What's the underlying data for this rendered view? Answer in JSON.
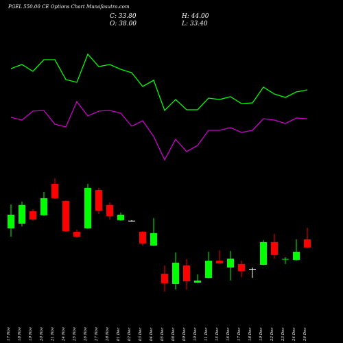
{
  "chart_data": {
    "type": "candlestick",
    "title": "PGEL 550.00 CE Options Chart Munafasutra.com",
    "ohlc_labels": [
      "C: 33.80",
      "H: 44.00",
      "O: 38.00",
      "L: 33.40"
    ],
    "categories": [
      "17 Nov",
      "18 Nov",
      "19 Nov",
      "20 Nov",
      "21 Nov",
      "24 Nov",
      "25 Nov",
      "26 Nov",
      "27 Nov",
      "28 Nov",
      "01 Dec",
      "02 Dec",
      "03 Dec",
      "04 Dec",
      "05 Dec",
      "08 Dec",
      "09 Dec",
      "10 Dec",
      "11 Dec",
      "15 Dec",
      "16 Dec",
      "17 Dec",
      "18 Dec",
      "19 Dec",
      "22 Dec",
      "23 Dec",
      "24 Dec",
      "26 Dec"
    ],
    "open": [
      43.7,
      46.1,
      52.5,
      50.4,
      66.6,
      57.8,
      41.9,
      43.7,
      63.4,
      55.7,
      47.9,
      47.6,
      41.9,
      34.8,
      20.3,
      15.0,
      24.6,
      15.7,
      18.2,
      27.0,
      23.5,
      25.3,
      22.8,
      24.9,
      36.6,
      27.8,
      27.4,
      38.0
    ],
    "high": [
      56.0,
      57.4,
      53.5,
      62.4,
      69.4,
      58.1,
      42.9,
      66.6,
      64.5,
      57.1,
      51.8,
      47.9,
      42.2,
      49.0,
      24.6,
      31.3,
      27.8,
      20.0,
      31.6,
      32.3,
      32.0,
      27.0,
      23.5,
      37.6,
      40.8,
      28.8,
      38.0,
      44.0
    ],
    "low": [
      39.4,
      44.7,
      47.5,
      50.0,
      58.8,
      41.9,
      38.7,
      43.3,
      51.1,
      48.2,
      47.5,
      47.2,
      34.8,
      34.5,
      11.1,
      12.2,
      12.2,
      15.4,
      17.9,
      25.3,
      16.8,
      18.6,
      18.2,
      24.6,
      28.1,
      25.3,
      27.0,
      33.4
    ],
    "close": [
      50.7,
      55.7,
      48.2,
      59.2,
      59.2,
      42.2,
      39.4,
      64.5,
      52.8,
      50.0,
      50.7,
      47.6,
      35.9,
      41.2,
      15.4,
      26.0,
      16.4,
      16.8,
      27.0,
      25.6,
      28.1,
      21.7,
      22.8,
      36.6,
      29.9,
      27.9,
      31.6,
      33.8
    ],
    "up_color": "#00ff00",
    "down_color": "#ff0000",
    "doji_color": "#ffffff",
    "ylim": [
      0,
      80
    ],
    "indicators": {
      "ylim": [
        0,
        100
      ],
      "series": [
        {
          "color": "#00ff00",
          "values": [
            75,
            78,
            73,
            81.5,
            81.5,
            67,
            65,
            85.5,
            76.5,
            78,
            74.5,
            72,
            62,
            66.5,
            44.5,
            52.5,
            45,
            45,
            53.5,
            52.5,
            54.5,
            49.5,
            50,
            61.5,
            56.5,
            54,
            58,
            59.5
          ]
        },
        {
          "color": "#cc00cc",
          "values": [
            39.5,
            37.5,
            44,
            44.5,
            34.5,
            32.5,
            51,
            40.5,
            44,
            44.5,
            42.5,
            33,
            37,
            25.5,
            8.5,
            23.5,
            14.5,
            19,
            30,
            30,
            32,
            28.5,
            30,
            38.5,
            37.5,
            35,
            39,
            38.5
          ]
        }
      ]
    }
  }
}
